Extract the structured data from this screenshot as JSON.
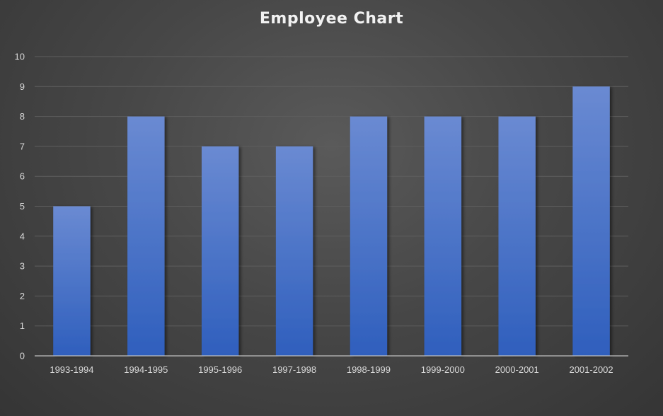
{
  "chart_data": {
    "type": "bar",
    "title": "Employee Chart",
    "categories": [
      "1993-1994",
      "1994-1995",
      "1995-1996",
      "1997-1998",
      "1998-1999",
      "1999-2000",
      "2000-2001",
      "2001-2002"
    ],
    "values": [
      5,
      8,
      7,
      7,
      8,
      8,
      8,
      9
    ],
    "ylim": [
      0,
      10
    ],
    "yticks": [
      0,
      1,
      2,
      3,
      4,
      5,
      6,
      7,
      8,
      9,
      10
    ],
    "xlabel": "",
    "ylabel": "",
    "grid": true,
    "legend": "none",
    "colors": {
      "bar_top": "#6a8ad2",
      "bar_bottom": "#2f5fbd",
      "background": "#474747",
      "text": "#d9d9d9"
    }
  }
}
